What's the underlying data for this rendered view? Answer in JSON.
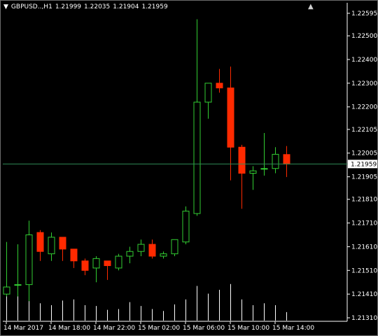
{
  "header": {
    "symbol_timeframe": "GBPUSD..,H1",
    "open": "1.21999",
    "high": "1.22035",
    "low": "1.21904",
    "close": "1.21959"
  },
  "current_price_label": "1.21959",
  "icons": {
    "menu": "dropdown-triangle",
    "nav": "up-triangle"
  },
  "colors": {
    "background": "#000000",
    "bull": "#32CD32",
    "bear": "#FF2A00",
    "price_line": "#2E8B57",
    "volume": "#FFFFFF",
    "axis_text": "#FFFFFF"
  },
  "chart_data": {
    "type": "candlestick",
    "timeframe": "H1",
    "y_ticks": [
      "1.22595",
      "1.22500",
      "1.22400",
      "1.22300",
      "1.22200",
      "1.22105",
      "1.22005",
      "1.21905",
      "1.21810",
      "1.21710",
      "1.21610",
      "1.21510",
      "1.21410",
      "1.21310"
    ],
    "x_labels": [
      "14 Mar 2017",
      "14 Mar 18:00",
      "14 Mar 22:00",
      "15 Mar 02:00",
      "15 Mar 06:00",
      "15 Mar 10:00",
      "15 Mar 14:00"
    ],
    "ylim": [
      1.2131,
      1.22595
    ],
    "current_price": 1.21959,
    "candles": [
      {
        "o": 1.2141,
        "h": 1.2163,
        "l": 1.214,
        "c": 1.2144,
        "v": 70
      },
      {
        "o": 1.2145,
        "h": 1.2162,
        "l": 1.214,
        "c": 1.2145,
        "v": 80
      },
      {
        "o": 1.2145,
        "h": 1.2172,
        "l": 1.2138,
        "c": 1.2166,
        "v": 88
      },
      {
        "o": 1.2167,
        "h": 1.2168,
        "l": 1.2155,
        "c": 1.2159,
        "v": 45
      },
      {
        "o": 1.2158,
        "h": 1.2167,
        "l": 1.2155,
        "c": 1.2165,
        "v": 40
      },
      {
        "o": 1.2165,
        "h": 1.2165,
        "l": 1.2155,
        "c": 1.216,
        "v": 52
      },
      {
        "o": 1.216,
        "h": 1.216,
        "l": 1.2152,
        "c": 1.2155,
        "v": 55
      },
      {
        "o": 1.2155,
        "h": 1.2156,
        "l": 1.2149,
        "c": 1.2151,
        "v": 40
      },
      {
        "o": 1.2152,
        "h": 1.2157,
        "l": 1.2146,
        "c": 1.2156,
        "v": 38
      },
      {
        "o": 1.2155,
        "h": 1.2155,
        "l": 1.2147,
        "c": 1.2153,
        "v": 28
      },
      {
        "o": 1.2152,
        "h": 1.2158,
        "l": 1.2151,
        "c": 1.2157,
        "v": 30
      },
      {
        "o": 1.2157,
        "h": 1.2161,
        "l": 1.2154,
        "c": 1.2159,
        "v": 48
      },
      {
        "o": 1.2159,
        "h": 1.2164,
        "l": 1.2157,
        "c": 1.2162,
        "v": 38
      },
      {
        "o": 1.2162,
        "h": 1.2164,
        "l": 1.2156,
        "c": 1.2157,
        "v": 30
      },
      {
        "o": 1.2157,
        "h": 1.2159,
        "l": 1.2156,
        "c": 1.2158,
        "v": 25
      },
      {
        "o": 1.2158,
        "h": 1.2164,
        "l": 1.2157,
        "c": 1.2164,
        "v": 42
      },
      {
        "o": 1.2163,
        "h": 1.2178,
        "l": 1.2162,
        "c": 1.2176,
        "v": 55
      },
      {
        "o": 1.2175,
        "h": 1.2257,
        "l": 1.2174,
        "c": 1.2222,
        "v": 90
      },
      {
        "o": 1.2222,
        "h": 1.223,
        "l": 1.2215,
        "c": 1.223,
        "v": 70
      },
      {
        "o": 1.223,
        "h": 1.2236,
        "l": 1.2226,
        "c": 1.2228,
        "v": 80
      },
      {
        "o": 1.2228,
        "h": 1.2237,
        "l": 1.2189,
        "c": 1.2203,
        "v": 95
      },
      {
        "o": 1.2203,
        "h": 1.2204,
        "l": 1.2177,
        "c": 1.2192,
        "v": 55
      },
      {
        "o": 1.2192,
        "h": 1.2195,
        "l": 1.2185,
        "c": 1.2193,
        "v": 40
      },
      {
        "o": 1.2194,
        "h": 1.2209,
        "l": 1.2191,
        "c": 1.2194,
        "v": 45
      },
      {
        "o": 1.2194,
        "h": 1.2203,
        "l": 1.2192,
        "c": 1.22,
        "v": 40
      },
      {
        "o": 1.21999,
        "h": 1.22035,
        "l": 1.21904,
        "c": 1.21959,
        "v": 22
      }
    ]
  }
}
